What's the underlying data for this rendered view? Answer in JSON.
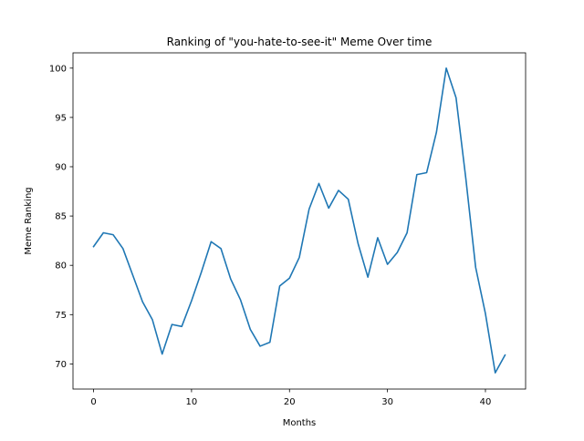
{
  "chart_data": {
    "type": "line",
    "title": "Ranking of \"you-hate-to-see-it\" Meme Over time",
    "xlabel": "Months",
    "ylabel": "Meme Ranking",
    "xlim": [
      -2.1,
      44.1
    ],
    "ylim": [
      67.45,
      101.55
    ],
    "xticks": [
      0,
      10,
      20,
      30,
      40
    ],
    "yticks": [
      70,
      75,
      80,
      85,
      90,
      95,
      100
    ],
    "grid": false,
    "legend": "none",
    "series": [
      {
        "color": "#1f77b4",
        "x": [
          0,
          1,
          2,
          3,
          4,
          5,
          6,
          7,
          8,
          9,
          10,
          11,
          12,
          13,
          14,
          15,
          16,
          17,
          18,
          19,
          20,
          21,
          22,
          23,
          24,
          25,
          26,
          27,
          28,
          29,
          30,
          31,
          32,
          33,
          34,
          35,
          36,
          37,
          38,
          39,
          40,
          41,
          42
        ],
        "values": [
          81.9,
          83.3,
          83.1,
          81.7,
          79.0,
          76.3,
          74.5,
          71.0,
          74.0,
          73.8,
          76.4,
          79.3,
          82.4,
          81.7,
          78.6,
          76.5,
          73.5,
          71.8,
          72.2,
          77.9,
          78.7,
          80.8,
          85.7,
          88.3,
          85.8,
          87.6,
          86.7,
          82.2,
          78.8,
          82.8,
          80.1,
          81.3,
          83.3,
          89.2,
          89.4,
          93.5,
          100.0,
          97.0,
          88.8,
          79.8,
          75.1,
          69.1,
          70.9
        ]
      }
    ]
  }
}
